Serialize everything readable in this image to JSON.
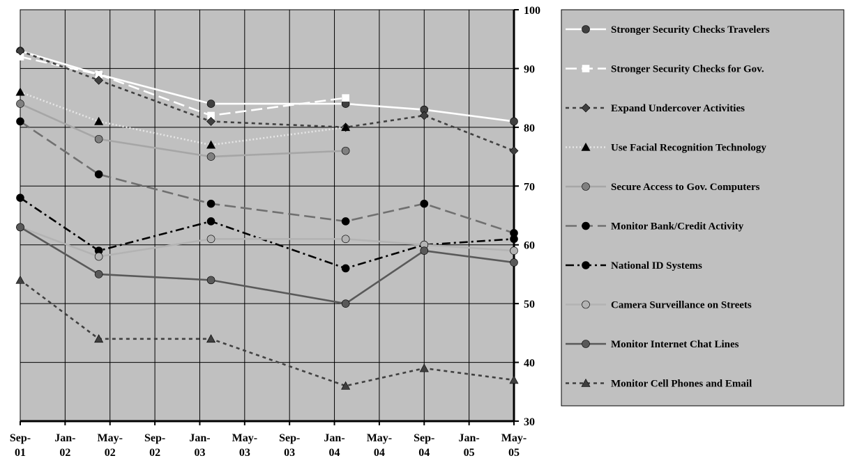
{
  "chart_data": {
    "type": "line",
    "x_labels": [
      [
        "Sep-",
        "01"
      ],
      [
        "Jan-",
        "02"
      ],
      [
        "May-",
        "02"
      ],
      [
        "Sep-",
        "02"
      ],
      [
        "Jan-",
        "03"
      ],
      [
        "May-",
        "03"
      ],
      [
        "Sep-",
        "03"
      ],
      [
        "Jan-",
        "04"
      ],
      [
        "May-",
        "04"
      ],
      [
        "Sep-",
        "04"
      ],
      [
        "Jan-",
        "05"
      ],
      [
        "May-",
        "05"
      ]
    ],
    "xlim": [
      "2001-09",
      "2005-05"
    ],
    "ylim": [
      30,
      100
    ],
    "y_ticks": [
      30,
      40,
      50,
      60,
      70,
      80,
      90,
      100
    ],
    "y_axis_side": "right",
    "grid": true,
    "plot_background": "#c0c0c0",
    "legend_position": "right",
    "series": [
      {
        "name": "Stronger Security Checks Travelers",
        "color": "#ffffff",
        "dash": "solid",
        "marker": "circle",
        "marker_color": "#404040",
        "points": [
          [
            "2001-09",
            93
          ],
          [
            "2002-04",
            89
          ],
          [
            "2003-02",
            84
          ],
          [
            "2004-02",
            84
          ],
          [
            "2004-09",
            83
          ],
          [
            "2005-05",
            81
          ]
        ]
      },
      {
        "name": "Stronger Security Checks for Gov.",
        "color": "#ffffff",
        "dash": "long-dash",
        "marker": "square",
        "marker_color": "#ffffff",
        "points": [
          [
            "2001-09",
            92
          ],
          [
            "2002-04",
            89
          ],
          [
            "2003-02",
            82
          ],
          [
            "2004-02",
            85
          ]
        ]
      },
      {
        "name": "Expand Undercover Activities",
        "color": "#404040",
        "dash": "short-dash",
        "marker": "diamond",
        "marker_color": "#404040",
        "points": [
          [
            "2001-09",
            93
          ],
          [
            "2002-04",
            88
          ],
          [
            "2003-02",
            81
          ],
          [
            "2004-02",
            80
          ],
          [
            "2004-09",
            82
          ],
          [
            "2005-05",
            76
          ]
        ]
      },
      {
        "name": "Use Facial Recognition Technology",
        "color": "#e6e6e6",
        "dash": "dotted",
        "marker": "triangle",
        "marker_color": "#000000",
        "points": [
          [
            "2001-09",
            86
          ],
          [
            "2002-04",
            81
          ],
          [
            "2003-02",
            77
          ],
          [
            "2004-02",
            80
          ]
        ]
      },
      {
        "name": "Secure Access to Gov. Computers",
        "color": "#a6a6a6",
        "dash": "solid",
        "marker": "circle",
        "marker_color": "#808080",
        "points": [
          [
            "2001-09",
            84
          ],
          [
            "2002-04",
            78
          ],
          [
            "2003-02",
            75
          ],
          [
            "2004-02",
            76
          ]
        ]
      },
      {
        "name": "Monitor Bank/Credit Activity",
        "color": "#707070",
        "dash": "long-dash",
        "marker": "circle",
        "marker_color": "#000000",
        "points": [
          [
            "2001-09",
            81
          ],
          [
            "2002-04",
            72
          ],
          [
            "2003-02",
            67
          ],
          [
            "2004-02",
            64
          ],
          [
            "2004-09",
            67
          ],
          [
            "2005-05",
            62
          ]
        ]
      },
      {
        "name": "National ID Systems",
        "color": "#000000",
        "dash": "dash-dot",
        "marker": "circle",
        "marker_color": "#000000",
        "points": [
          [
            "2001-09",
            68
          ],
          [
            "2002-04",
            59
          ],
          [
            "2003-02",
            64
          ],
          [
            "2004-02",
            56
          ],
          [
            "2004-09",
            60
          ],
          [
            "2005-05",
            61
          ]
        ]
      },
      {
        "name": "Camera Surveillance on Streets",
        "color": "#b3b3b3",
        "dash": "solid",
        "marker": "circle",
        "marker_color": "#b3b3b3",
        "points": [
          [
            "2001-09",
            63
          ],
          [
            "2002-04",
            58
          ],
          [
            "2003-02",
            61
          ],
          [
            "2004-02",
            61
          ],
          [
            "2004-09",
            60
          ],
          [
            "2005-05",
            59
          ]
        ]
      },
      {
        "name": "Monitor Internet Chat Lines",
        "color": "#595959",
        "dash": "solid",
        "marker": "circle",
        "marker_color": "#595959",
        "points": [
          [
            "2001-09",
            63
          ],
          [
            "2002-04",
            55
          ],
          [
            "2003-02",
            54
          ],
          [
            "2004-02",
            50
          ],
          [
            "2004-09",
            59
          ],
          [
            "2005-05",
            57
          ]
        ]
      },
      {
        "name": "Monitor Cell Phones and Email",
        "color": "#404040",
        "dash": "short-dash",
        "marker": "triangle",
        "marker_color": "#404040",
        "points": [
          [
            "2001-09",
            54
          ],
          [
            "2002-04",
            44
          ],
          [
            "2003-02",
            44
          ],
          [
            "2004-02",
            36
          ],
          [
            "2004-09",
            39
          ],
          [
            "2005-05",
            37
          ]
        ]
      }
    ]
  }
}
